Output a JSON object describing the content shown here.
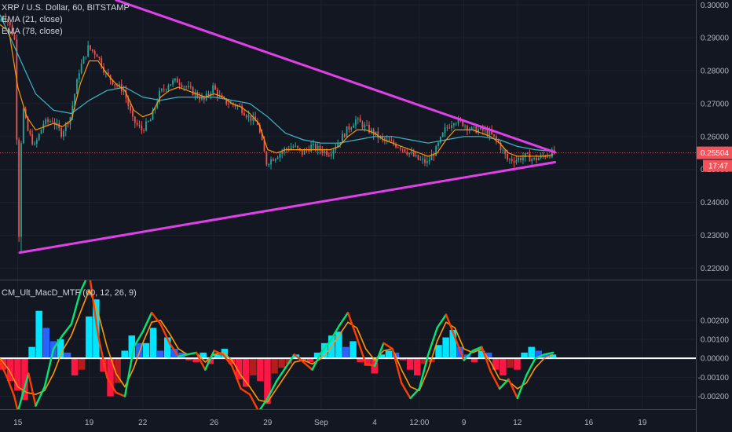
{
  "chart_data": [
    {
      "type": "line",
      "pane": "price",
      "title": "XRP / U.S. Dollar, 60, BITSTAMP",
      "indicators": [
        "EMA (21, close)",
        "EMA (78, close)"
      ],
      "colors": {
        "candle_up": "#26a69a",
        "candle_down": "#ef5350",
        "ema21": "#ff9800",
        "ema78": "#3fb6c9",
        "trendline": "#e040e8",
        "price_tag": "#f2535a",
        "last_price_line": "#f2535a"
      },
      "y_ticks": [
        "0.30000",
        "0.29000",
        "0.28000",
        "0.27000",
        "0.26000",
        "0.25000",
        "0.24000",
        "0.23000",
        "0.22000"
      ],
      "ylim": [
        0.2165,
        0.3015
      ],
      "last_price_label": "0.25504",
      "countdown_label": "17:47",
      "last_price": 0.25504,
      "x_ticks": [
        "15",
        "19",
        "22",
        "26",
        "29",
        "Sep",
        "4",
        "12:00",
        "9",
        "12",
        "16",
        "19"
      ],
      "x_tick_days": [
        15,
        19,
        22,
        26,
        29,
        32,
        35,
        37.5,
        40,
        43,
        47,
        50
      ],
      "xlim": [
        14,
        53
      ],
      "trendlines": [
        {
          "name": "upper",
          "points": [
            [
              20.5,
              0.3015
            ],
            [
              45.1,
              0.2552
            ]
          ]
        },
        {
          "name": "lower",
          "points": [
            [
              15.1,
              0.2247
            ],
            [
              45.1,
              0.2522
            ]
          ]
        }
      ],
      "series": [
        {
          "name": "price",
          "x": [
            14.0,
            14.3,
            14.6,
            14.9,
            15.0,
            15.1,
            15.3,
            15.6,
            16.0,
            16.5,
            17.0,
            17.5,
            18.0,
            18.5,
            19.0,
            19.5,
            20.0,
            20.5,
            21.0,
            21.5,
            22.0,
            22.5,
            23.0,
            23.5,
            24.0,
            24.5,
            25.0,
            25.5,
            26.0,
            26.5,
            27.0,
            27.5,
            28.0,
            28.5,
            29.0,
            29.5,
            30.0,
            30.5,
            31.0,
            31.5,
            32.0,
            32.5,
            33.0,
            33.5,
            34.0,
            34.5,
            35.0,
            35.5,
            36.0,
            36.5,
            37.0,
            37.5,
            38.0,
            38.5,
            39.0,
            39.5,
            40.0,
            40.5,
            41.0,
            41.5,
            42.0,
            42.5,
            43.0,
            43.5,
            44.0,
            44.5,
            45.0
          ],
          "y": [
            0.295,
            0.297,
            0.294,
            0.289,
            0.26,
            0.2247,
            0.27,
            0.262,
            0.257,
            0.264,
            0.265,
            0.261,
            0.266,
            0.28,
            0.287,
            0.285,
            0.279,
            0.276,
            0.274,
            0.265,
            0.262,
            0.265,
            0.273,
            0.276,
            0.277,
            0.275,
            0.273,
            0.271,
            0.275,
            0.271,
            0.27,
            0.269,
            0.266,
            0.264,
            0.252,
            0.254,
            0.256,
            0.257,
            0.255,
            0.257,
            0.256,
            0.255,
            0.258,
            0.262,
            0.265,
            0.263,
            0.261,
            0.259,
            0.258,
            0.257,
            0.255,
            0.253,
            0.252,
            0.256,
            0.262,
            0.265,
            0.264,
            0.262,
            0.262,
            0.261,
            0.258,
            0.253,
            0.253,
            0.254,
            0.253,
            0.254,
            0.255
          ]
        },
        {
          "name": "EMA (21, close)",
          "x": [
            14.0,
            14.5,
            15.0,
            15.5,
            16.0,
            16.5,
            17.0,
            17.5,
            18.0,
            18.5,
            19.0,
            19.5,
            20.0,
            20.5,
            21.0,
            21.5,
            22.0,
            22.5,
            23.0,
            23.5,
            24.0,
            24.5,
            25.0,
            25.5,
            26.0,
            26.5,
            27.0,
            27.5,
            28.0,
            28.5,
            29.0,
            29.5,
            30.0,
            30.5,
            31.0,
            31.5,
            32.0,
            32.5,
            33.0,
            33.5,
            34.0,
            34.5,
            35.0,
            35.5,
            36.0,
            36.5,
            37.0,
            37.5,
            38.0,
            38.5,
            39.0,
            39.5,
            40.0,
            40.5,
            41.0,
            41.5,
            42.0,
            42.5,
            43.0,
            43.5,
            44.0,
            44.5,
            45.0
          ],
          "y": [
            0.294,
            0.292,
            0.275,
            0.266,
            0.262,
            0.263,
            0.264,
            0.263,
            0.265,
            0.276,
            0.283,
            0.283,
            0.279,
            0.276,
            0.274,
            0.268,
            0.266,
            0.267,
            0.272,
            0.274,
            0.275,
            0.274,
            0.273,
            0.272,
            0.273,
            0.272,
            0.27,
            0.269,
            0.267,
            0.264,
            0.256,
            0.255,
            0.256,
            0.256,
            0.256,
            0.256,
            0.256,
            0.256,
            0.257,
            0.26,
            0.262,
            0.262,
            0.261,
            0.259,
            0.258,
            0.257,
            0.256,
            0.255,
            0.254,
            0.255,
            0.259,
            0.262,
            0.262,
            0.262,
            0.261,
            0.26,
            0.258,
            0.255,
            0.254,
            0.254,
            0.254,
            0.254,
            0.2545
          ]
        },
        {
          "name": "EMA (78, close)",
          "x": [
            14.0,
            15.0,
            16.0,
            17.0,
            18.0,
            19.0,
            20.0,
            21.0,
            22.0,
            23.0,
            24.0,
            25.0,
            26.0,
            27.0,
            28.0,
            29.0,
            30.0,
            31.0,
            32.0,
            33.0,
            34.0,
            35.0,
            36.0,
            37.0,
            38.0,
            39.0,
            40.0,
            41.0,
            42.0,
            43.0,
            44.0,
            45.0
          ],
          "y": [
            0.297,
            0.285,
            0.273,
            0.268,
            0.267,
            0.271,
            0.274,
            0.275,
            0.272,
            0.271,
            0.272,
            0.272,
            0.272,
            0.271,
            0.27,
            0.266,
            0.261,
            0.259,
            0.258,
            0.258,
            0.259,
            0.26,
            0.26,
            0.259,
            0.258,
            0.259,
            0.26,
            0.26,
            0.259,
            0.257,
            0.256,
            0.2555
          ]
        }
      ]
    },
    {
      "type": "bar",
      "pane": "indicator",
      "title": "CM_Ult_MacD_MTF (60, 12, 26, 9)",
      "colors": {
        "hist_pos_strong": "#00e5ff",
        "hist_pos": "#2962ff",
        "hist_neg_strong": "#ff1744",
        "hist_neg": "#b71c1c",
        "macd_up": "#00e676",
        "macd_down": "#ff3d00",
        "signal": "#ff9800",
        "zero_line": "#ffffff"
      },
      "y_ticks": [
        "0.00200",
        "0.00100",
        "0.00000",
        "-0.00100",
        "-0.00200"
      ],
      "ylim": [
        -0.00268,
        0.0041
      ],
      "xlim": [
        14,
        53
      ],
      "series": [
        {
          "name": "macd",
          "x": [
            14.0,
            14.4,
            14.8,
            15.0,
            15.3,
            15.6,
            16.0,
            16.5,
            17.0,
            17.5,
            18.0,
            18.5,
            19.0,
            19.5,
            20.0,
            20.5,
            21.0,
            21.5,
            22.0,
            22.5,
            23.0,
            23.5,
            24.0,
            24.5,
            25.0,
            25.5,
            26.0,
            26.5,
            27.0,
            27.5,
            28.0,
            28.5,
            29.0,
            29.5,
            30.0,
            30.5,
            31.0,
            31.5,
            32.0,
            32.5,
            33.0,
            33.5,
            34.0,
            34.5,
            35.0,
            35.5,
            36.0,
            36.5,
            37.0,
            37.5,
            38.0,
            38.5,
            39.0,
            39.5,
            40.0,
            40.5,
            41.0,
            41.5,
            42.0,
            42.5,
            43.0,
            43.5,
            44.0,
            44.5,
            45.0
          ],
          "y": [
            -0.0002,
            -0.001,
            -0.002,
            -0.0028,
            -0.0018,
            -0.0008,
            -0.0025,
            -0.0015,
            0.0005,
            0.0012,
            0.0018,
            0.0035,
            0.0045,
            0.0012,
            -0.001,
            -0.0018,
            -0.002,
            0.0006,
            0.0014,
            0.0024,
            0.0018,
            0.0008,
            0.0001,
            0.0002,
            0.0003,
            -0.0006,
            0.0004,
            0.0002,
            -0.0004,
            -0.0016,
            -0.0019,
            -0.0028,
            -0.0021,
            -0.0012,
            -0.0005,
            0.0002,
            -0.0002,
            -0.0006,
            0.0003,
            0.0009,
            0.0017,
            0.0024,
            0.0011,
            -0.0003,
            -0.0004,
            0.0008,
            0.0005,
            -0.0013,
            -0.0021,
            -0.0016,
            0.0002,
            0.0016,
            0.0023,
            0.0011,
            -0.0001,
            0.0004,
            0.0006,
            -0.0007,
            -0.0016,
            -0.0011,
            -0.0021,
            -0.0009,
            0.0,
            0.0002,
            0.0003
          ]
        },
        {
          "name": "signal",
          "x": [
            14.0,
            14.5,
            15.0,
            15.5,
            16.0,
            16.5,
            17.0,
            17.5,
            18.0,
            18.5,
            19.0,
            19.5,
            20.0,
            20.5,
            21.0,
            21.5,
            22.0,
            22.5,
            23.0,
            23.5,
            24.0,
            24.5,
            25.0,
            25.5,
            26.0,
            26.5,
            27.0,
            27.5,
            28.0,
            28.5,
            29.0,
            29.5,
            30.0,
            30.5,
            31.0,
            31.5,
            32.0,
            32.5,
            33.0,
            33.5,
            34.0,
            34.5,
            35.0,
            35.5,
            36.0,
            36.5,
            37.0,
            37.5,
            38.0,
            38.5,
            39.0,
            39.5,
            40.0,
            40.5,
            41.0,
            41.5,
            42.0,
            42.5,
            43.0,
            43.5,
            44.0,
            44.5,
            45.0
          ],
          "y": [
            0.0,
            -0.0006,
            -0.0015,
            -0.0018,
            -0.0019,
            -0.0017,
            -0.0008,
            0.0004,
            0.0012,
            0.0024,
            0.0036,
            0.0024,
            0.0006,
            -0.0008,
            -0.0015,
            -0.0005,
            0.0008,
            0.0019,
            0.002,
            0.0013,
            0.0005,
            0.0002,
            0.0003,
            -0.0002,
            0.0002,
            0.0003,
            -0.0001,
            -0.0009,
            -0.0015,
            -0.0022,
            -0.0023,
            -0.0016,
            -0.0009,
            -0.0002,
            -0.0001,
            -0.0003,
            0.0,
            0.0005,
            0.0012,
            0.0019,
            0.0016,
            0.0005,
            -0.0001,
            0.0004,
            0.0005,
            -0.0006,
            -0.0015,
            -0.0017,
            -0.0006,
            0.0009,
            0.0019,
            0.0016,
            0.0005,
            0.0003,
            0.0005,
            -0.0002,
            -0.0011,
            -0.0012,
            -0.0016,
            -0.0013,
            -0.0005,
            0.0,
            0.0002
          ]
        },
        {
          "name": "histogram",
          "x": [
            14.0,
            14.4,
            14.8,
            15.2,
            15.6,
            16.0,
            16.4,
            16.8,
            17.2,
            17.6,
            18.0,
            18.4,
            18.8,
            19.2,
            19.6,
            20.0,
            20.4,
            20.8,
            21.2,
            21.6,
            22.0,
            22.4,
            22.8,
            23.2,
            23.6,
            24.0,
            24.4,
            24.8,
            25.2,
            25.6,
            26.0,
            26.4,
            26.8,
            27.2,
            27.6,
            28.0,
            28.4,
            28.8,
            29.2,
            29.6,
            30.0,
            30.4,
            30.8,
            31.2,
            31.6,
            32.0,
            32.4,
            32.8,
            33.2,
            33.6,
            34.0,
            34.4,
            34.8,
            35.2,
            35.6,
            36.0,
            36.4,
            36.8,
            37.2,
            37.6,
            38.0,
            38.4,
            38.8,
            39.2,
            39.6,
            40.0,
            40.4,
            40.8,
            41.2,
            41.6,
            42.0,
            42.4,
            42.8,
            43.2,
            43.6,
            44.0,
            44.4,
            44.8
          ],
          "y": [
            -0.0006,
            -0.0012,
            -0.0017,
            -0.0022,
            0.0006,
            0.0025,
            0.0016,
            0.0009,
            0.001,
            0.0003,
            -0.0009,
            -0.0006,
            0.0022,
            0.0031,
            -0.0007,
            -0.002,
            -0.0013,
            0.0004,
            0.0012,
            0.0008,
            0.0008,
            0.0016,
            0.0004,
            0.0011,
            0.0005,
            0.0003,
            -0.0001,
            -0.0002,
            0.0003,
            -0.0003,
            0.0002,
            0.0005,
            -0.0003,
            -0.0011,
            -0.0015,
            -0.0009,
            -0.0012,
            -0.0024,
            -0.0008,
            -0.0005,
            -0.0003,
            0.0002,
            -0.0001,
            -0.0002,
            0.0003,
            0.0008,
            0.0012,
            0.0014,
            0.0006,
            0.0009,
            -0.0002,
            -0.0004,
            -0.0008,
            0.0002,
            0.0004,
            0.0003,
            -0.0001,
            -0.0006,
            -0.0009,
            -0.0003,
            -0.0002,
            0.0007,
            0.0011,
            0.0015,
            0.0006,
            0.0002,
            -0.0002,
            0.0004,
            0.0003,
            -0.0006,
            -0.0009,
            -0.0005,
            -0.0006,
            0.0003,
            0.0006,
            0.0004,
            0.0002,
            0.0002
          ]
        }
      ]
    }
  ]
}
